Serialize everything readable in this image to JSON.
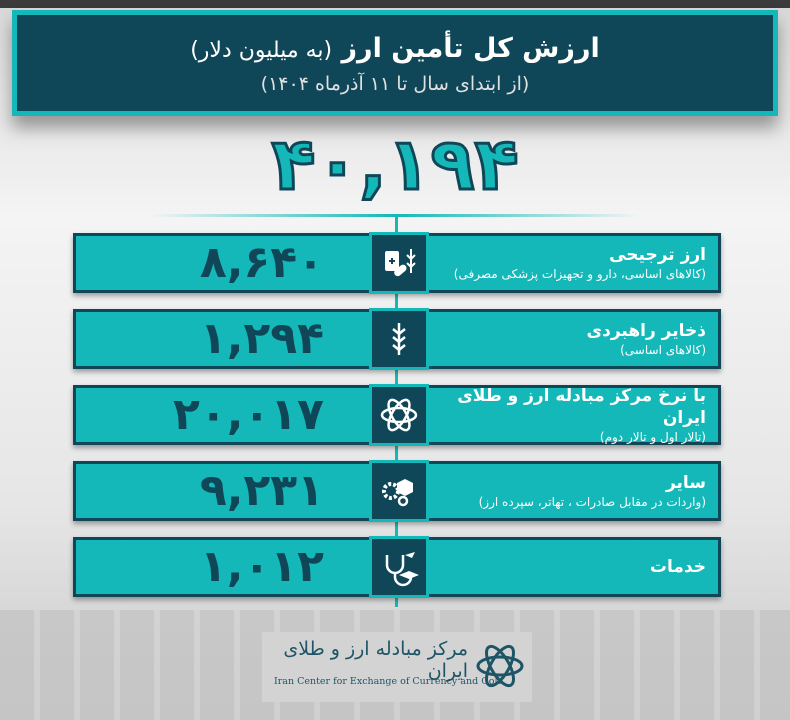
{
  "header": {
    "title": "ارزش کل تأمین ارز",
    "title_unit": "(به میلیون دلار)",
    "subtitle": "(از ابتدای سال تا ۱۱ آذرماه ۱۴۰۴)"
  },
  "total": "۴۰,۱۹۴",
  "rows": [
    {
      "value": "۸,۶۴۰",
      "label": "ارز ترجیحی",
      "sub": "(کالاهای اساسی، دارو و تجهیزات پزشکی مصرفی)",
      "icon": "medicine-wheat-icon"
    },
    {
      "value": "۱,۲۹۴",
      "label": "ذخایر راهبردی",
      "sub": "(کالاهای اساسی)",
      "icon": "wheat-icon"
    },
    {
      "value": "۲۰,۰۱۷",
      "label": "با نرخ مرکز مبادله ارز و طلای ایران",
      "sub": "(تالار اول و تالار دوم)",
      "icon": "exchange-logo-icon"
    },
    {
      "value": "۹,۲۳۱",
      "label": "سایر",
      "sub": "(واردات در مقابل صادرات ، تهاتر، سپرده ارز)",
      "icon": "gears-box-icon"
    },
    {
      "value": "۱,۰۱۲",
      "label": "خدمات",
      "sub": "",
      "icon": "services-icon"
    }
  ],
  "footer": {
    "logo_fa": "مرکز مبادله ارز و طلای ایران",
    "logo_en": "Iran Center for Exchange of Currency and Gold"
  },
  "colors": {
    "teal": "#14b8b8",
    "dark": "#0f4658"
  }
}
